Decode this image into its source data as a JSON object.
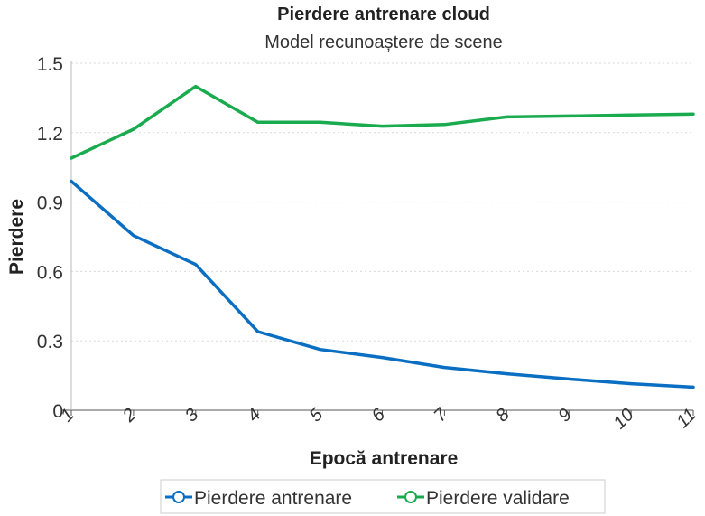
{
  "chart_data": {
    "type": "line",
    "title": "Pierdere antrenare cloud",
    "subtitle": "Model recunoaștere de scene",
    "xlabel": "Epocă antrenare",
    "ylabel": "Pierdere",
    "categories": [
      "1",
      "2",
      "3",
      "4",
      "5",
      "6",
      "7",
      "8",
      "9",
      "10",
      "11"
    ],
    "ylim": [
      0,
      1.5
    ],
    "yticks": [
      "0",
      "0.3",
      "0.6",
      "0.9",
      "1.2",
      "1.5"
    ],
    "grid": true,
    "legend_position": "bottom",
    "series": [
      {
        "name": "Pierdere antrenare",
        "color": "#0a6fc2",
        "values": [
          0.99,
          0.755,
          0.63,
          0.34,
          0.263,
          0.228,
          0.185,
          0.158,
          0.135,
          0.115,
          0.1
        ]
      },
      {
        "name": "Pierdere validare",
        "color": "#1aab4f",
        "values": [
          1.09,
          1.215,
          1.4,
          1.245,
          1.245,
          1.228,
          1.235,
          1.268,
          1.272,
          1.276,
          1.28
        ]
      }
    ]
  }
}
